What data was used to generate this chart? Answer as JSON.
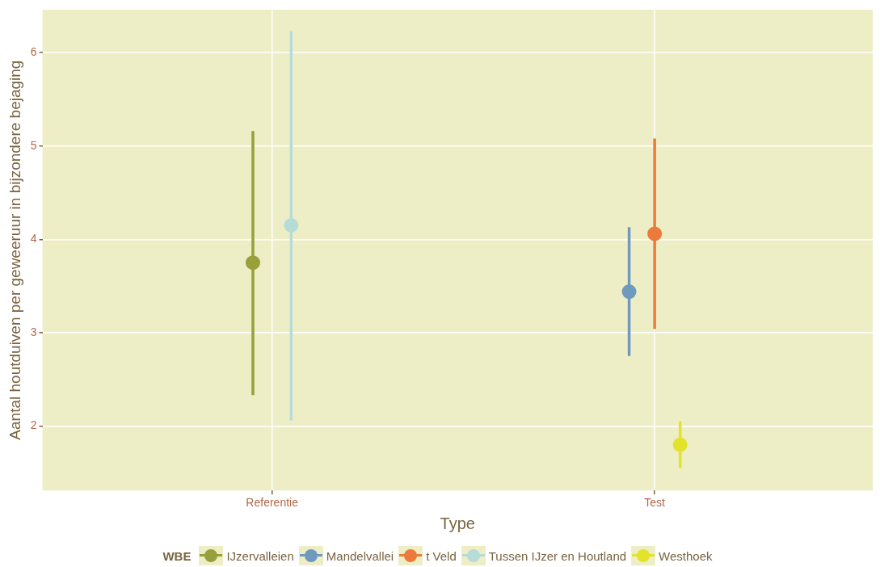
{
  "chart_data": {
    "type": "scatter",
    "xlabel": "Type",
    "ylabel": "Aantal houtduiven per geweeruur in bijzondere bejaging",
    "legend_title": "WBE",
    "categories": [
      "Referentie",
      "Test"
    ],
    "ylim": [
      1.31,
      6.46
    ],
    "yticks": [
      2,
      3,
      4,
      5,
      6
    ],
    "grid": true,
    "legend": "bottom",
    "marker": "circle",
    "series": [
      {
        "name": "IJzervalleien",
        "color": "#97a03a",
        "values": [
          3.75,
          null
        ],
        "errors": [
          [
            2.33,
            5.16
          ],
          null
        ]
      },
      {
        "name": "Mandelvallei",
        "color": "#6e9ac0",
        "values": [
          null,
          3.44
        ],
        "errors": [
          null,
          [
            2.75,
            4.13
          ]
        ]
      },
      {
        "name": "t Veld",
        "color": "#ec7a3a",
        "values": [
          null,
          4.06
        ],
        "errors": [
          null,
          [
            3.04,
            5.08
          ]
        ]
      },
      {
        "name": "Tussen IJzer en Houtland",
        "color": "#b6dcd8",
        "values": [
          4.15,
          null
        ],
        "errors": [
          [
            2.06,
            6.23
          ],
          null
        ]
      },
      {
        "name": "Westhoek",
        "color": "#e2e32a",
        "values": [
          null,
          1.8
        ],
        "errors": [
          null,
          [
            1.55,
            2.05
          ]
        ]
      }
    ]
  }
}
